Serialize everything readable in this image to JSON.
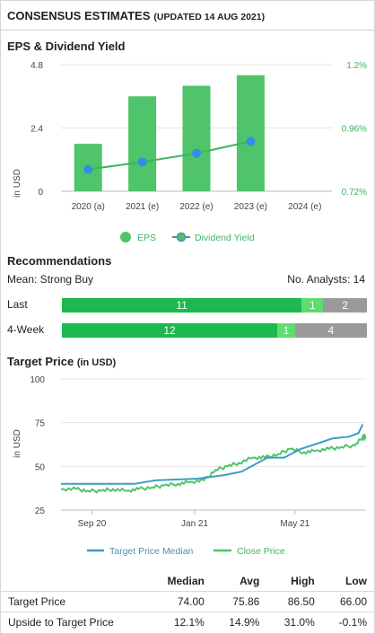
{
  "header": {
    "title": "CONSENSUS ESTIMATES",
    "updated": "(UPDATED 14 AUG 2021)"
  },
  "eps_section": {
    "title": "EPS & Dividend Yield",
    "y_label": "in USD",
    "legend": {
      "eps": "EPS",
      "dividend": "Dividend Yield"
    },
    "colors": {
      "eps": "#4fc46a",
      "dividend": "#4a90b8",
      "dividend_dot": "#2e8fe8",
      "right_axis": "#3cb55e"
    }
  },
  "recommendations": {
    "title": "Recommendations",
    "mean_label": "Mean: Strong Buy",
    "analysts_label": "No. Analysts: 14",
    "rows": [
      {
        "label": "Last",
        "segments": [
          {
            "value": "11",
            "n": 11,
            "color": "#1db84f"
          },
          {
            "value": "1",
            "n": 1,
            "color": "#5fdc6f"
          },
          {
            "value": "2",
            "n": 2,
            "color": "#9a9a9a"
          }
        ]
      },
      {
        "label": "4-Week",
        "segments": [
          {
            "value": "12",
            "n": 12,
            "color": "#1db84f"
          },
          {
            "value": "1",
            "n": 1,
            "color": "#5fdc6f"
          },
          {
            "value": "4",
            "n": 4,
            "color": "#9a9a9a"
          }
        ]
      }
    ]
  },
  "target_section": {
    "title": "Target Price",
    "unit": "(in USD)",
    "y_label": "in USD",
    "legend": {
      "median": "Target Price Median",
      "close": "Close Price"
    },
    "colors": {
      "median": "#3a9dc4",
      "close": "#4fc46a"
    }
  },
  "table": {
    "headers": [
      "",
      "Median",
      "Avg",
      "High",
      "Low"
    ],
    "rows": [
      [
        "Target Price",
        "74.00",
        "75.86",
        "86.50",
        "66.00"
      ],
      [
        "Upside to Target Price",
        "12.1%",
        "14.9%",
        "31.0%",
        "-0.1%"
      ]
    ]
  },
  "chart_data": [
    {
      "type": "bar",
      "categories": [
        "2020 (a)",
        "2021 (e)",
        "2022 (e)",
        "2023 (e)",
        "2024 (e)"
      ],
      "series": [
        {
          "name": "EPS",
          "values": [
            1.8,
            3.6,
            4.0,
            4.4,
            null
          ]
        },
        {
          "name": "Dividend Yield",
          "axis": "right",
          "values": [
            0.803,
            0.831,
            0.864,
            0.909,
            null
          ]
        }
      ],
      "ylim": [
        0,
        4.8
      ],
      "yticks": [
        "0",
        "2.4",
        "4.8"
      ],
      "y2lim": [
        0.72,
        1.2
      ],
      "y2ticks": [
        "0.72%",
        "0.96%",
        "1.2%"
      ],
      "ylabel": "in USD",
      "grid": true,
      "legend": "bottom"
    },
    {
      "type": "line",
      "x_ticks": [
        "Sep 20",
        "Jan 21",
        "May 21"
      ],
      "ylim": [
        25,
        100
      ],
      "yticks": [
        "25",
        "50",
        "75",
        "100"
      ],
      "ylabel": "in USD",
      "grid": true,
      "legend": "bottom",
      "series": [
        {
          "name": "Target Price Median",
          "x": [
            "2020-08-14",
            "2020-11-10",
            "2020-12-05",
            "2021-01-25",
            "2021-02-25",
            "2021-03-18",
            "2021-04-18",
            "2021-05-08",
            "2021-05-28",
            "2021-06-10",
            "2021-07-05",
            "2021-07-25",
            "2021-08-05",
            "2021-08-10"
          ],
          "values": [
            40,
            40,
            42,
            43,
            45,
            47,
            55,
            55,
            60,
            62,
            66,
            67,
            69,
            74
          ]
        },
        {
          "name": "Close Price",
          "x": [
            "2020-08-14",
            "2020-09-01",
            "2020-09-15",
            "2020-10-01",
            "2020-10-15",
            "2020-11-01",
            "2020-11-15",
            "2020-12-01",
            "2020-12-15",
            "2021-01-01",
            "2021-01-15",
            "2021-02-01",
            "2021-02-15",
            "2021-03-01",
            "2021-03-15",
            "2021-04-01",
            "2021-04-15",
            "2021-05-01",
            "2021-05-15",
            "2021-06-01",
            "2021-06-15",
            "2021-07-01",
            "2021-07-15",
            "2021-08-01",
            "2021-08-10",
            "2021-08-14"
          ],
          "values": [
            37,
            37,
            36,
            36,
            37,
            36,
            37,
            38,
            39,
            40,
            41,
            42,
            48,
            50,
            52,
            55,
            55,
            57,
            60,
            58,
            59,
            60,
            61,
            62,
            67,
            66
          ]
        }
      ]
    }
  ]
}
